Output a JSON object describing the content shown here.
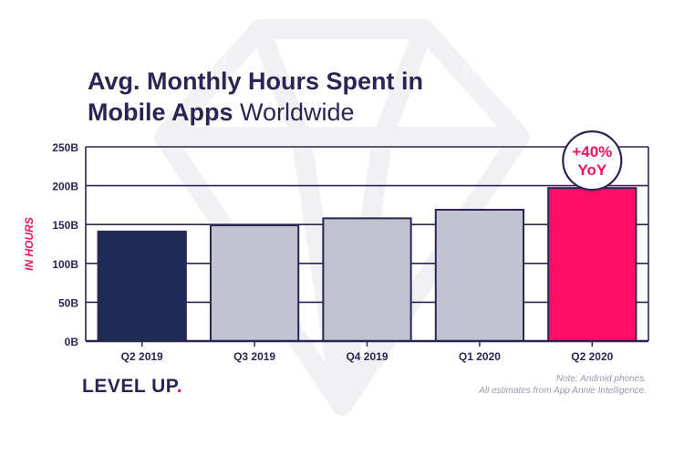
{
  "title": {
    "line1": "Avg. Monthly Hours Spent in",
    "line2_bold": "Mobile Apps",
    "line2_light": " Worldwide"
  },
  "chart_data": {
    "type": "bar",
    "categories": [
      "Q2 2019",
      "Q3 2019",
      "Q4 2019",
      "Q1 2020",
      "Q2 2020"
    ],
    "values": [
      141,
      149,
      158,
      169,
      197
    ],
    "ylabel": "IN HOURS",
    "ylim": [
      0,
      250
    ],
    "yticks": [
      0,
      50,
      100,
      150,
      200,
      250
    ],
    "ytick_labels": [
      "0B",
      "50B",
      "100B",
      "150B",
      "200B",
      "250B"
    ],
    "grid": true,
    "colors": [
      "#1f2a55",
      "#c2c3d1",
      "#c2c3d1",
      "#c2c3d1",
      "#ff0d67"
    ],
    "annotation": {
      "line1": "+40%",
      "line2": "YoY",
      "category": "Q2 2020",
      "color": "#f2115f"
    }
  },
  "brand": {
    "text": "LEVEL UP",
    "dot": "."
  },
  "note": {
    "line1": "Note: Android phones.",
    "line2": "All estimates from App Annie Intelligence."
  },
  "colors": {
    "navy": "#2b2553",
    "accent": "#f2115f"
  }
}
